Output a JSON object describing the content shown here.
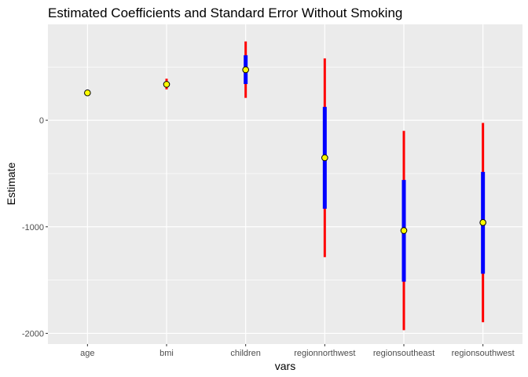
{
  "chart_data": {
    "type": "scatter",
    "title": "Estimated Coefficients and Standard Error Without Smoking",
    "xlabel": "vars",
    "ylabel": "Estimate",
    "categories": [
      "age",
      "bmi",
      "children",
      "regionnorthwest",
      "regionsoutheast",
      "regionsouthwest"
    ],
    "estimates": [
      257,
      337,
      474,
      -352,
      -1035,
      -960
    ],
    "inner_interval": {
      "color": "#0000FF",
      "low": [
        257,
        320,
        340,
        -830,
        -1515,
        -1440
      ],
      "high": [
        257,
        355,
        610,
        125,
        -560,
        -485
      ]
    },
    "outer_interval": {
      "color": "#FF0000",
      "low": [
        257,
        290,
        210,
        -1285,
        -1970,
        -1895
      ],
      "high": [
        257,
        390,
        740,
        580,
        -100,
        -25
      ]
    },
    "point_fill": "#FFFF00",
    "point_stroke": "#000000",
    "yticks": [
      0,
      -1000,
      -2000
    ],
    "ylim": [
      -2100,
      900
    ],
    "grid": true
  }
}
